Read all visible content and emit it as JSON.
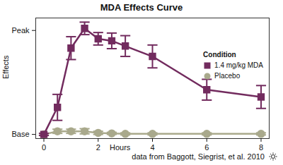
{
  "chart_data": {
    "type": "line",
    "title": "MDA Effects Curve",
    "caption": "data from Baggott, Siegrist, et al. 2010",
    "x_label": "Hours",
    "y_label": "Effects",
    "legend_title": "Condition",
    "legend": "upper right",
    "x": [
      0,
      0.5,
      1,
      1.5,
      2,
      2.5,
      3,
      4,
      6,
      8
    ],
    "series": [
      {
        "name": "1.4 mg/kg MDA",
        "color": "#722b5e",
        "marker": "square",
        "values": [
          0,
          26,
          83,
          102,
          92,
          90,
          85,
          75,
          43,
          36
        ],
        "errors": [
          1,
          12.5,
          11,
          6,
          6,
          7.5,
          10,
          11,
          10,
          11
        ]
      },
      {
        "name": "Placebo",
        "color": "#a9a98c",
        "marker": "circle",
        "values": [
          0,
          3,
          3,
          3,
          1.5,
          1,
          0.5,
          0.5,
          0.5,
          0.5
        ],
        "errors": [
          1,
          2,
          2,
          2.5,
          1.5,
          1,
          1,
          1,
          1,
          1
        ]
      }
    ],
    "xlim": [
      -0.3,
      8.3
    ],
    "xticks": [
      0,
      2,
      4,
      6,
      8
    ],
    "ylim": [
      -4,
      112
    ],
    "yticks": [
      {
        "value": 0,
        "label": "Base"
      },
      {
        "value": 100,
        "label": "Peak"
      }
    ]
  }
}
